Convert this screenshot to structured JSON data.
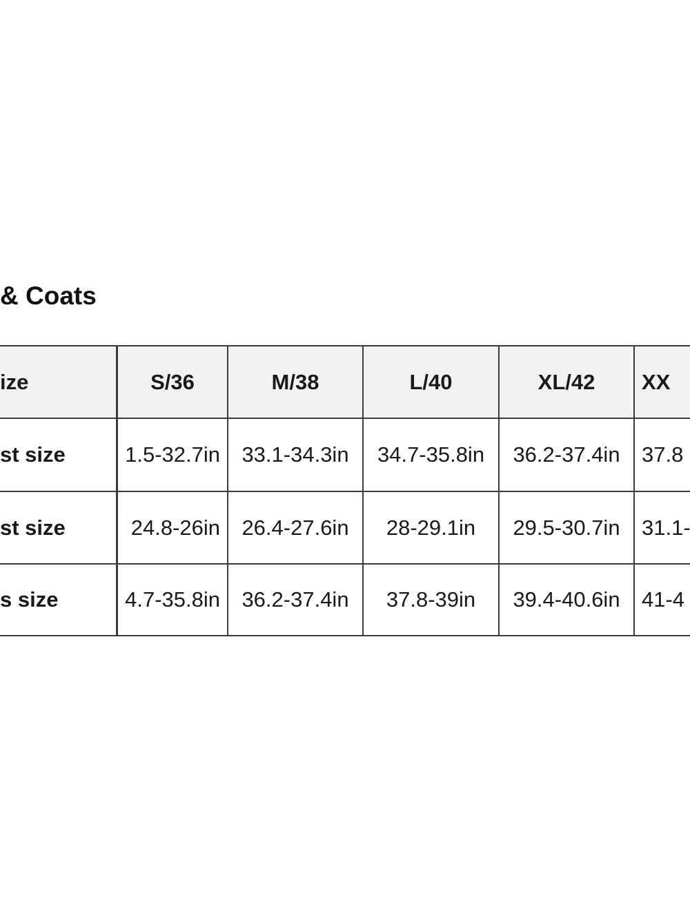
{
  "title": "& Coats",
  "table": {
    "header": [
      "ize",
      "S/36",
      "M/38",
      "L/40",
      "XL/42",
      "XX"
    ],
    "rows": [
      [
        "st size",
        "1.5-32.7in",
        "33.1-34.3in",
        "34.7-35.8in",
        "36.2-37.4in",
        "37.8"
      ],
      [
        "st size",
        "24.8-26in",
        "26.4-27.6in",
        "28-29.1in",
        "29.5-30.7in",
        "31.1-"
      ],
      [
        "s size",
        "4.7-35.8in",
        "36.2-37.4in",
        "37.8-39in",
        "39.4-40.6in",
        "41-4"
      ]
    ]
  }
}
